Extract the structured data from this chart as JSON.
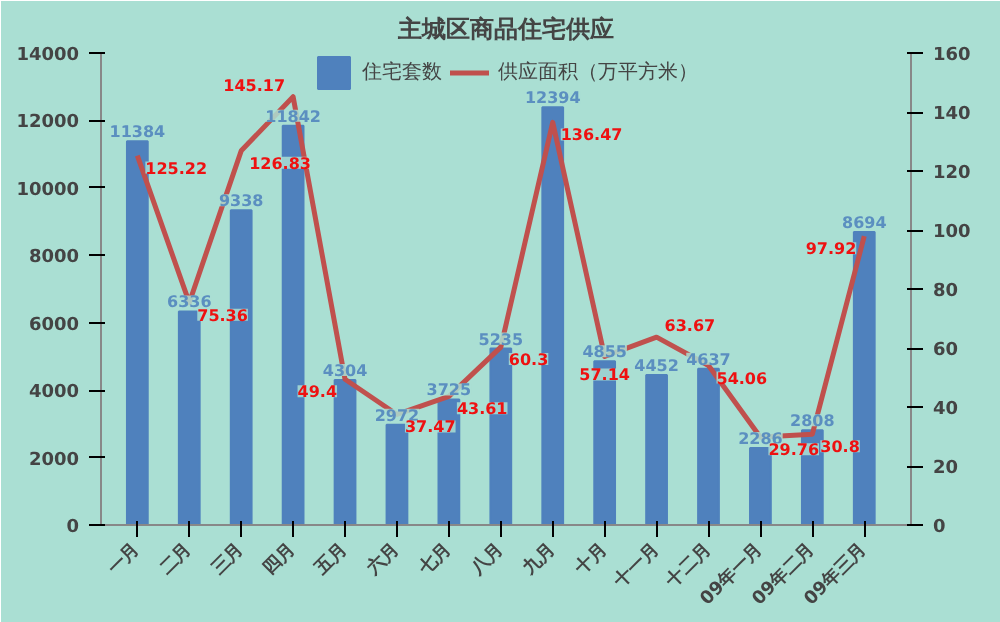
{
  "chart_data": {
    "type": "bar",
    "title": "主城区商品住宅供应",
    "categories": [
      "一月",
      "二月",
      "三月",
      "四月",
      "五月",
      "六月",
      "七月",
      "八月",
      "九月",
      "十月",
      "十一月",
      "十二月",
      "09年一月",
      "09年二月",
      "09年三月"
    ],
    "series": [
      {
        "name": "住宅套数",
        "color": "#4f81bd",
        "values": [
          11384,
          6336,
          9338,
          11842,
          4304,
          2972,
          3725,
          5235,
          12394,
          4855,
          4452,
          4637,
          2286,
          2808,
          8694
        ]
      },
      {
        "name": "供应面积（万平方米）",
        "type": "line",
        "axis": "y2",
        "color": "#c0504d",
        "values": [
          125.22,
          75.36,
          126.83,
          145.17,
          49.4,
          37.47,
          43.61,
          60.3,
          136.47,
          57.14,
          63.67,
          54.06,
          29.76,
          30.8,
          97.92
        ]
      }
    ],
    "ylim": [
      0,
      14000
    ],
    "yticks": [
      0,
      2000,
      4000,
      6000,
      8000,
      10000,
      12000,
      14000
    ],
    "y2lim": [
      0,
      160
    ],
    "y2ticks": [
      0,
      20,
      40,
      60,
      80,
      100,
      120,
      140,
      160
    ],
    "data_labels": true,
    "legend": "top",
    "grid": false,
    "marker": "none"
  }
}
